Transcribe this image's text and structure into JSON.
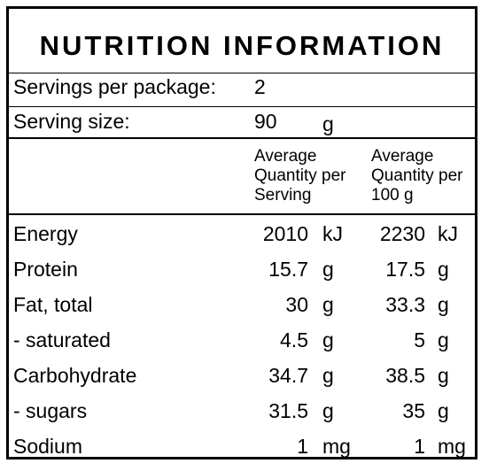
{
  "title": "NUTRITION INFORMATION",
  "servings": {
    "label": "Servings per package:",
    "value": "2"
  },
  "serving_size": {
    "label": "Serving size:",
    "value": "90",
    "unit": "g"
  },
  "columns": {
    "per_serving": [
      "Average",
      "Quantity per",
      "Serving"
    ],
    "per_100g": [
      "Average",
      "Quantity per",
      "100 g"
    ]
  },
  "rows": [
    {
      "name": "Energy",
      "per_serving": "2010",
      "per_serving_unit": "kJ",
      "per_100g": "2230",
      "per_100g_unit": "kJ"
    },
    {
      "name": "Protein",
      "per_serving": "15.7",
      "per_serving_unit": "g",
      "per_100g": "17.5",
      "per_100g_unit": "g"
    },
    {
      "name": "Fat, total",
      "per_serving": "30",
      "per_serving_unit": "g",
      "per_100g": "33.3",
      "per_100g_unit": "g"
    },
    {
      "name": "- saturated",
      "per_serving": "4.5",
      "per_serving_unit": "g",
      "per_100g": "5",
      "per_100g_unit": "g"
    },
    {
      "name": "Carbohydrate",
      "per_serving": "34.7",
      "per_serving_unit": "g",
      "per_100g": "38.5",
      "per_100g_unit": "g"
    },
    {
      "name": "- sugars",
      "per_serving": "31.5",
      "per_serving_unit": "g",
      "per_100g": "35",
      "per_100g_unit": "g"
    },
    {
      "name": "Sodium",
      "per_serving": "1",
      "per_serving_unit": "mg",
      "per_100g": "1",
      "per_100g_unit": "mg"
    }
  ]
}
